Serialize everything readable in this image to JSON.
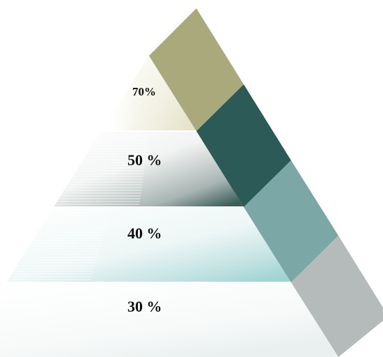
{
  "levels": [
    {
      "label": "70%",
      "color": "#a9a97c"
    },
    {
      "label": "50 %",
      "color": "#2b5a57"
    },
    {
      "label": "40 %",
      "color": "#7ba8a6"
    },
    {
      "label": "30 %",
      "color": "#b4bbba"
    }
  ]
}
